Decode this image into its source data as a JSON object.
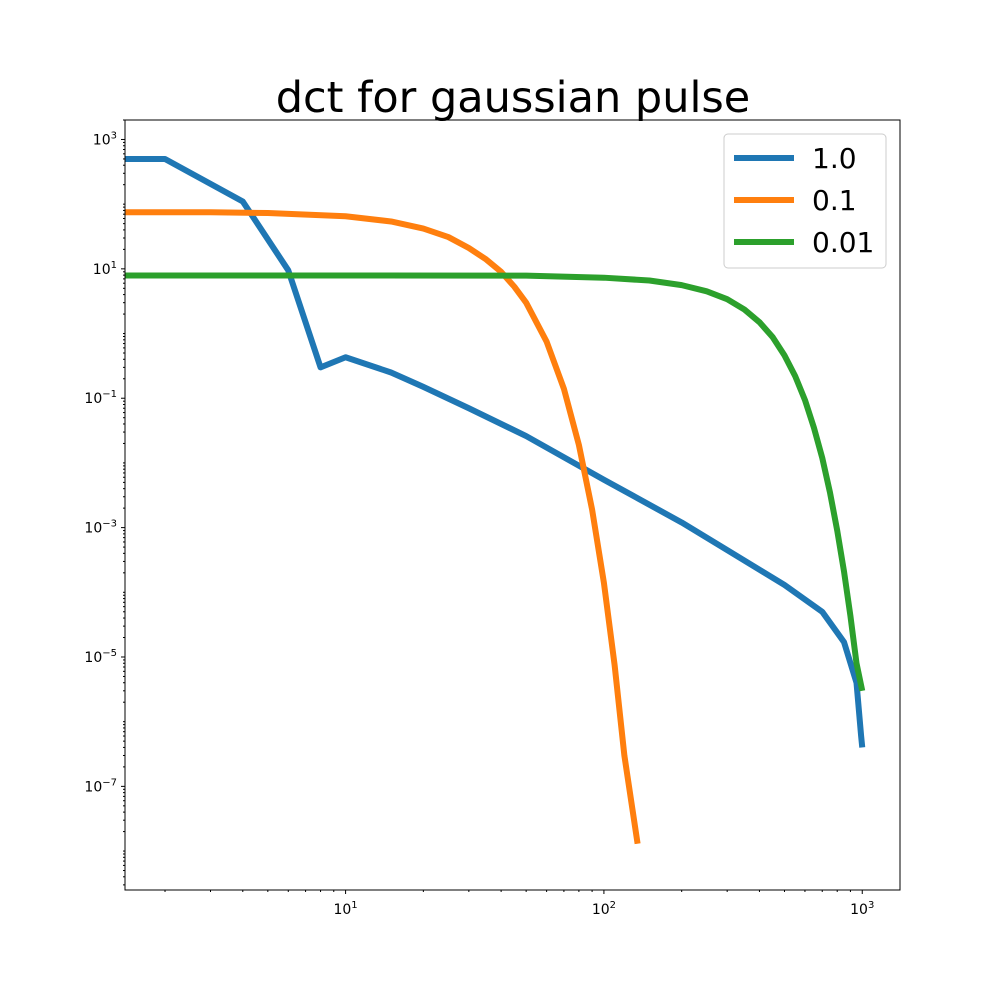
{
  "chart_data": {
    "type": "line",
    "title": "dct for gaussian pulse",
    "xlabel": "",
    "ylabel": "",
    "xscale": "log",
    "yscale": "log",
    "xlim": [
      1.4,
      1400
    ],
    "ylim": [
      2.5e-09,
      2000.0
    ],
    "grid": false,
    "legend_position": "top-right",
    "colors": {
      "1.0": "#1f77b4",
      "0.1": "#ff7f0e",
      "0.01": "#2ca02c"
    },
    "x_ticks": [
      {
        "base": "10",
        "exp": "1",
        "value": 10
      },
      {
        "base": "10",
        "exp": "2",
        "value": 100
      },
      {
        "base": "10",
        "exp": "3",
        "value": 1000
      }
    ],
    "y_ticks": [
      {
        "base": "10",
        "exp": "3",
        "value": 1000
      },
      {
        "base": "10",
        "exp": "1",
        "value": 10
      },
      {
        "base": "10",
        "exp": "−1",
        "value": 0.1
      },
      {
        "base": "10",
        "exp": "−3",
        "value": 0.001
      },
      {
        "base": "10",
        "exp": "−5",
        "value": 1e-05
      },
      {
        "base": "10",
        "exp": "−7",
        "value": 1e-07
      }
    ],
    "series": [
      {
        "name": "1.0",
        "x": [
          1.4,
          2,
          4,
          6,
          8,
          10,
          15,
          20,
          30,
          50,
          100,
          200,
          300,
          500,
          700,
          850,
          950,
          990,
          1000
        ],
        "y": [
          500,
          500,
          110,
          9.5,
          0.3,
          0.43,
          0.25,
          0.15,
          0.07,
          0.026,
          0.0055,
          0.0012,
          0.00045,
          0.00013,
          5e-05,
          1.7e-05,
          4e-06,
          6e-07,
          4e-07
        ]
      },
      {
        "name": "0.1",
        "x": [
          1.4,
          3,
          5,
          10,
          15,
          20,
          25,
          30,
          35,
          40,
          45,
          50,
          60,
          70,
          80,
          90,
          100,
          110,
          120,
          135
        ],
        "y": [
          75,
          75,
          73,
          65,
          54,
          42,
          31,
          21,
          14,
          9,
          5.3,
          3.0,
          0.75,
          0.14,
          0.019,
          0.0019,
          0.00014,
          7.5e-06,
          3e-07,
          1.3e-08
        ]
      },
      {
        "name": "0.01",
        "x": [
          1.4,
          10,
          50,
          100,
          150,
          200,
          250,
          300,
          350,
          400,
          450,
          500,
          550,
          600,
          650,
          700,
          750,
          800,
          850,
          900,
          950,
          1000
        ],
        "y": [
          7.9,
          7.9,
          7.85,
          7.3,
          6.6,
          5.6,
          4.5,
          3.4,
          2.35,
          1.5,
          0.88,
          0.46,
          0.22,
          0.094,
          0.035,
          0.012,
          0.0035,
          0.0009,
          0.00021,
          4.3e-05,
          8e-06,
          3e-06
        ]
      }
    ]
  }
}
